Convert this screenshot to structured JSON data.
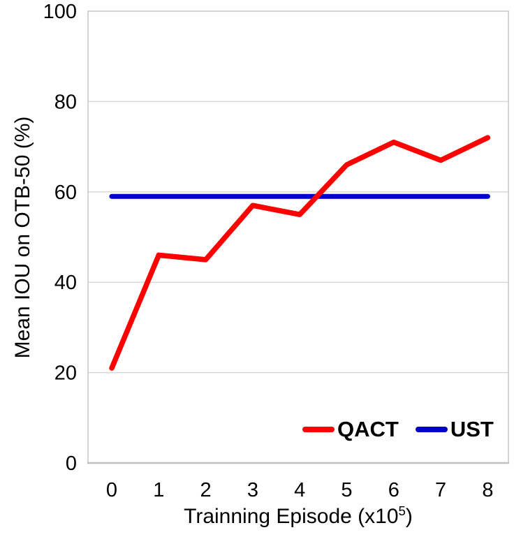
{
  "chart_data": {
    "type": "line",
    "title": "",
    "xlabel": "Trainning Episode (x10⁵)",
    "xlabel_parts": {
      "prefix": "Trainning Episode (x10",
      "superscript": "5",
      "suffix": ")"
    },
    "ylabel": "Mean IOU on OTB-50 (%)",
    "categories": [
      0,
      1,
      2,
      3,
      4,
      5,
      6,
      7,
      8
    ],
    "series": [
      {
        "name": "QACT",
        "color": "#FF0000",
        "values": [
          21,
          46,
          45,
          57,
          55,
          66,
          71,
          67,
          72
        ]
      },
      {
        "name": "UST",
        "color": "#0000CC",
        "values": [
          59,
          59,
          59,
          59,
          59,
          59,
          59,
          59,
          59
        ]
      }
    ],
    "ylim": [
      0,
      100
    ],
    "yticks": [
      0,
      20,
      40,
      60,
      80,
      100
    ],
    "xticks": [
      0,
      1,
      2,
      3,
      4,
      5,
      6,
      7,
      8
    ],
    "grid": "horizontal-only",
    "legend_position": "inside-bottom-right",
    "colors": {
      "gridline": "#D9D9D9",
      "plot_border": "#C6C6C6",
      "axis_line": "#BFBFBF",
      "tick_text": "#000000"
    }
  }
}
